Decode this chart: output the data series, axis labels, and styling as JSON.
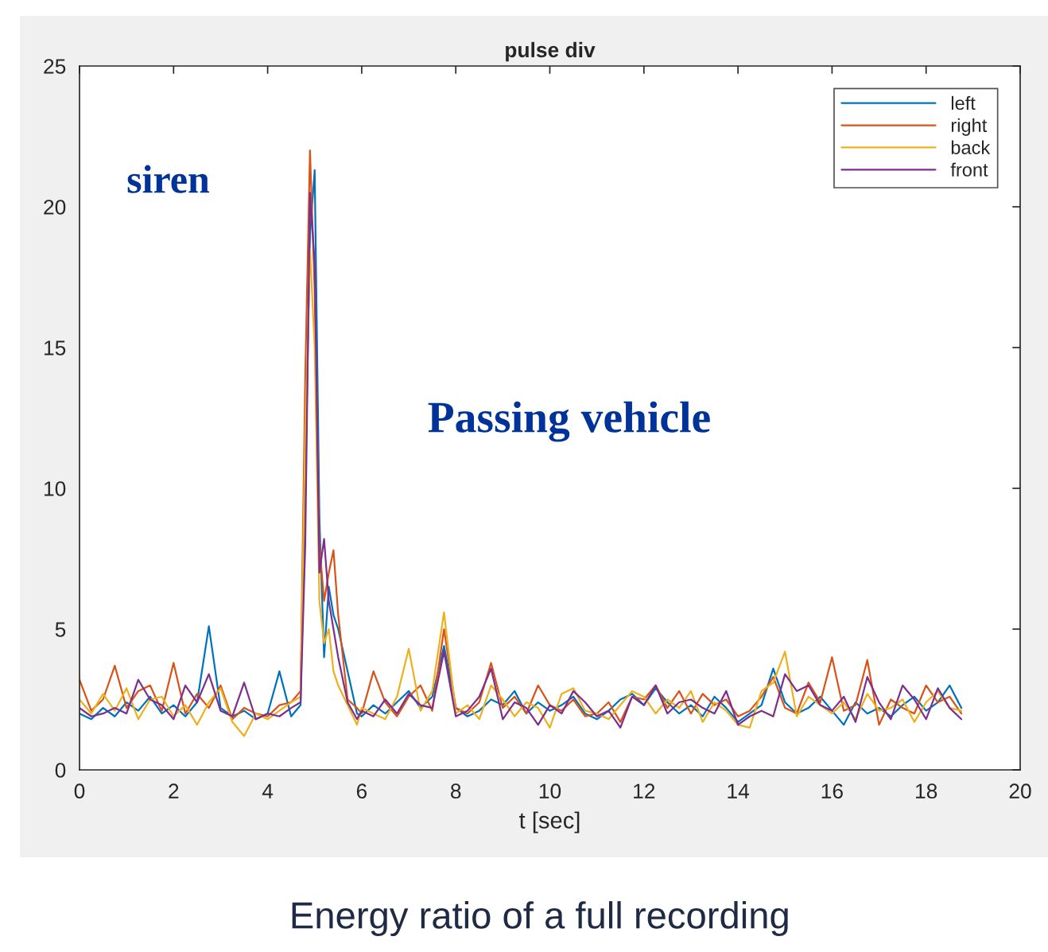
{
  "chart_data": {
    "type": "line",
    "title": "pulse div",
    "xlabel": "t [sec]",
    "x": [
      0,
      0.25,
      0.5,
      0.75,
      1,
      1.25,
      1.5,
      1.75,
      2,
      2.25,
      2.5,
      2.75,
      3,
      3.25,
      3.5,
      3.75,
      4,
      4.25,
      4.5,
      4.7,
      4.8,
      4.9,
      5.0,
      5.1,
      5.2,
      5.3,
      5.4,
      5.5,
      5.7,
      5.9,
      6,
      6.25,
      6.5,
      6.75,
      7,
      7.25,
      7.5,
      7.75,
      8,
      8.25,
      8.5,
      8.75,
      9,
      9.25,
      9.5,
      9.75,
      10,
      10.25,
      10.5,
      10.75,
      11,
      11.25,
      11.5,
      11.75,
      12,
      12.25,
      12.5,
      12.75,
      13,
      13.25,
      13.5,
      13.75,
      14,
      14.25,
      14.5,
      14.75,
      15,
      15.25,
      15.5,
      15.75,
      16,
      16.25,
      16.5,
      16.75,
      17,
      17.25,
      17.5,
      17.75,
      18,
      18.25,
      18.5,
      18.75
    ],
    "series": [
      {
        "name": "left",
        "color": "#0072bd",
        "values": [
          2.0,
          1.8,
          2.2,
          1.9,
          2.4,
          2.1,
          2.6,
          2.0,
          2.3,
          1.9,
          2.4,
          5.1,
          2.2,
          1.9,
          2.1,
          1.8,
          2.0,
          3.5,
          1.9,
          2.3,
          10,
          19,
          21.3,
          9,
          4.0,
          6.5,
          5.5,
          5.0,
          3.5,
          2.0,
          1.9,
          2.3,
          2.0,
          2.4,
          2.8,
          2.2,
          2.6,
          4.4,
          2.2,
          1.9,
          2.1,
          2.5,
          2.3,
          2.8,
          2.0,
          2.4,
          2.1,
          2.3,
          2.6,
          2.0,
          1.8,
          2.1,
          2.5,
          2.7,
          2.3,
          2.9,
          2.4,
          2.0,
          2.3,
          1.9,
          2.6,
          2.2,
          1.7,
          2.0,
          2.3,
          3.6,
          2.4,
          2.0,
          2.2,
          2.6,
          2.1,
          1.6,
          2.4,
          2.0,
          2.2,
          1.9,
          2.3,
          2.6,
          2.1,
          2.4,
          3.0,
          2.2
        ]
      },
      {
        "name": "right",
        "color": "#d95319",
        "values": [
          3.2,
          2.1,
          2.5,
          3.7,
          2.2,
          2.8,
          3.0,
          2.1,
          3.8,
          2.0,
          2.7,
          2.2,
          3.0,
          1.8,
          2.2,
          2.0,
          1.9,
          2.3,
          2.4,
          2.8,
          14,
          22,
          17,
          8,
          6,
          7,
          7.8,
          5.5,
          2.5,
          2.2,
          2.0,
          3.5,
          2.4,
          1.9,
          2.6,
          3.0,
          2.1,
          5.0,
          2.2,
          2.0,
          2.4,
          3.8,
          2.2,
          2.6,
          2.0,
          3.0,
          2.3,
          2.1,
          2.5,
          1.9,
          2.0,
          2.4,
          1.7,
          2.6,
          2.5,
          3.0,
          2.2,
          2.8,
          2.0,
          2.7,
          2.3,
          2.5,
          1.9,
          2.1,
          2.6,
          3.3,
          2.2,
          2.0,
          3.1,
          2.4,
          4.0,
          2.1,
          2.3,
          3.9,
          1.6,
          2.5,
          2.2,
          2.0,
          3.0,
          2.4,
          2.6,
          2.0
        ]
      },
      {
        "name": "back",
        "color": "#edb120",
        "values": [
          2.5,
          2.0,
          2.7,
          2.1,
          2.9,
          1.8,
          2.5,
          2.6,
          1.9,
          2.3,
          1.6,
          2.4,
          2.9,
          1.7,
          1.2,
          2.0,
          1.8,
          2.1,
          2.4,
          2.6,
          12,
          18.5,
          15,
          6,
          4.5,
          5.0,
          3.5,
          3.0,
          2.3,
          1.6,
          2.2,
          2.0,
          1.8,
          2.6,
          4.3,
          2.1,
          2.8,
          5.6,
          2.0,
          2.3,
          1.8,
          3.0,
          2.5,
          1.9,
          2.4,
          2.2,
          1.5,
          2.7,
          2.9,
          2.1,
          2.0,
          1.8,
          2.3,
          2.8,
          2.6,
          2.0,
          2.5,
          2.2,
          2.8,
          1.7,
          2.4,
          2.1,
          1.6,
          1.5,
          2.8,
          3.1,
          4.2,
          1.9,
          2.6,
          2.3,
          2.0,
          2.4,
          1.8,
          2.7,
          2.1,
          2.2,
          2.5,
          1.7,
          2.4,
          2.8,
          2.2,
          2.1
        ]
      },
      {
        "name": "front",
        "color": "#7e2f8e",
        "values": [
          2.2,
          1.9,
          2.0,
          2.2,
          2.0,
          3.2,
          2.5,
          2.3,
          1.8,
          3.0,
          2.4,
          3.4,
          2.1,
          1.9,
          3.1,
          1.8,
          2.0,
          1.9,
          2.2,
          2.4,
          8,
          20.5,
          18,
          7,
          8.2,
          6,
          5.0,
          4.0,
          2.4,
          1.8,
          2.1,
          1.9,
          2.5,
          2.0,
          2.7,
          2.3,
          2.2,
          4.2,
          1.9,
          2.1,
          2.6,
          3.6,
          1.8,
          2.4,
          2.2,
          1.6,
          2.3,
          2.0,
          2.8,
          2.4,
          1.9,
          2.1,
          1.5,
          2.6,
          2.3,
          3.0,
          2.0,
          2.4,
          2.5,
          2.2,
          2.0,
          2.8,
          1.6,
          1.9,
          2.1,
          1.9,
          3.4,
          2.8,
          3.0,
          2.3,
          2.1,
          2.6,
          1.7,
          3.3,
          2.4,
          1.8,
          3.0,
          2.5,
          1.8,
          2.9,
          2.2,
          1.8
        ]
      }
    ],
    "xlim": [
      0,
      20
    ],
    "ylim": [
      0,
      25
    ],
    "xticks": [
      0,
      2,
      4,
      6,
      8,
      10,
      12,
      14,
      16,
      18,
      20
    ],
    "yticks": [
      0,
      5,
      10,
      15,
      20,
      25
    ],
    "grid": false,
    "legend": "top right",
    "marker": "none",
    "line_style": "solid",
    "annotations": [
      "siren",
      "Passing vehicle",
      "Energy ratio of a full recording"
    ]
  }
}
